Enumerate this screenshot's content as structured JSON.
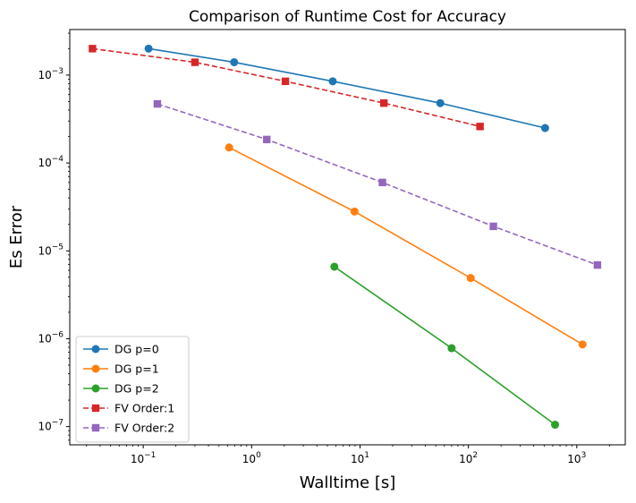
{
  "chart_data": {
    "type": "line",
    "title": "Comparison of Runtime Cost for Accuracy",
    "xlabel": "Walltime [s]",
    "ylabel": "Es Error",
    "xscale": "log",
    "yscale": "log",
    "xlim": [
      0.021,
      2800
    ],
    "ylim": [
      6.2e-08,
      0.0033
    ],
    "grid": false,
    "legend_position": "lower-left",
    "x_ticks": [
      {
        "value": 0.1,
        "base": "10",
        "exp": "−1"
      },
      {
        "value": 1,
        "base": "10",
        "exp": "0"
      },
      {
        "value": 10,
        "base": "10",
        "exp": "1"
      },
      {
        "value": 100,
        "base": "10",
        "exp": "2"
      },
      {
        "value": 1000,
        "base": "10",
        "exp": "3"
      }
    ],
    "y_ticks": [
      {
        "value": 1e-07,
        "base": "10",
        "exp": "−7"
      },
      {
        "value": 1e-06,
        "base": "10",
        "exp": "−6"
      },
      {
        "value": 1e-05,
        "base": "10",
        "exp": "−5"
      },
      {
        "value": 0.0001,
        "base": "10",
        "exp": "−4"
      },
      {
        "value": 0.001,
        "base": "10",
        "exp": "−3"
      }
    ],
    "series": [
      {
        "name": "DG p=0",
        "color": "#1f77b4",
        "linestyle": "solid",
        "marker": "circle",
        "x": [
          0.112,
          0.69,
          5.6,
          55,
          510
        ],
        "y": [
          0.002,
          0.0014,
          0.00085,
          0.00048,
          0.00025
        ]
      },
      {
        "name": "DG p=1",
        "color": "#ff7f0e",
        "linestyle": "solid",
        "marker": "circle",
        "x": [
          0.62,
          8.9,
          105,
          1130
        ],
        "y": [
          0.00015,
          2.8e-05,
          4.9e-06,
          8.6e-07
        ]
      },
      {
        "name": "DG p=2",
        "color": "#2ca02c",
        "linestyle": "solid",
        "marker": "circle",
        "x": [
          5.8,
          70,
          630
        ],
        "y": [
          6.6e-06,
          7.8e-07,
          1.05e-07
        ]
      },
      {
        "name": "FV Order:1",
        "color": "#d62728",
        "linestyle": "dashed",
        "marker": "square",
        "x": [
          0.034,
          0.3,
          2.05,
          16.6,
          128
        ],
        "y": [
          0.002,
          0.0014,
          0.00085,
          0.00048,
          0.00026
        ]
      },
      {
        "name": "FV Order:2",
        "color": "#9467bd",
        "linestyle": "dashed",
        "marker": "square",
        "x": [
          0.135,
          1.38,
          16.1,
          170,
          1550
        ],
        "y": [
          0.00047,
          0.000185,
          6e-05,
          1.9e-05,
          6.9e-06
        ]
      }
    ]
  }
}
